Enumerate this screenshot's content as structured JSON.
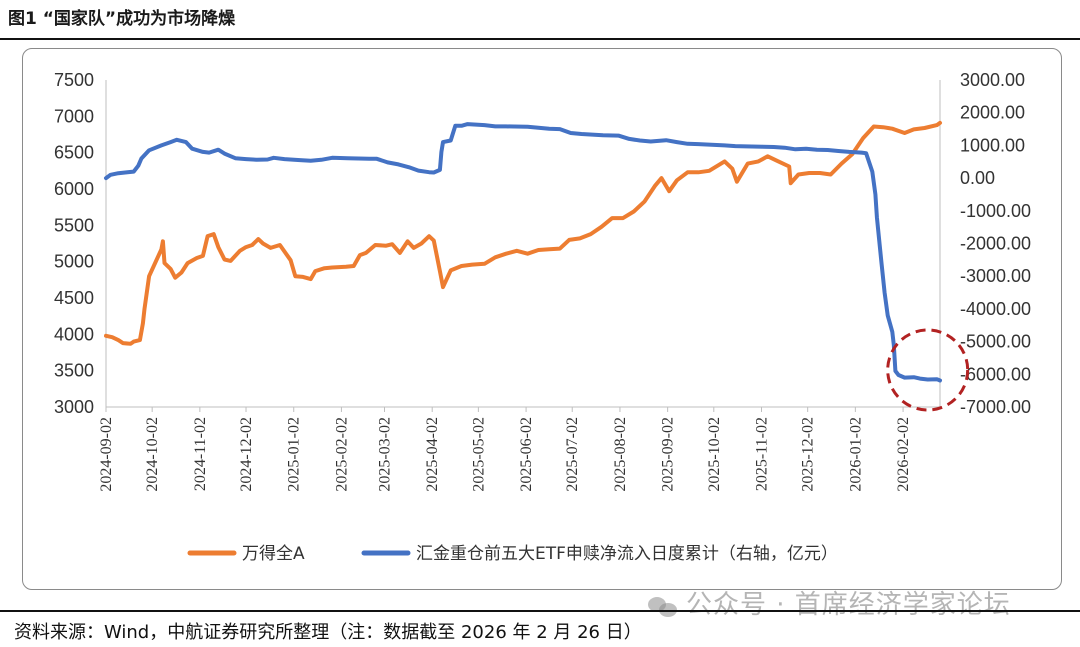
{
  "figure": {
    "title": "图1  “国家队”成功为市场降燥",
    "source": "资料来源：Wind，中航证券研究所整理（注：数据截至 2026 年 2 月 26 日）",
    "watermark": "公众号 · 首席经济学家论坛",
    "watermark_icon": "wechat-icon"
  },
  "chart_data": {
    "type": "line",
    "title": "",
    "x_tick_labels": [
      "2024-09-02",
      "2024-10-02",
      "2024-11-02",
      "2024-12-02",
      "2025-01-02",
      "2025-02-02",
      "2025-03-02",
      "2025-04-02",
      "2025-05-02",
      "2025-06-02",
      "2025-07-02",
      "2025-08-02",
      "2025-09-02",
      "2025-10-02",
      "2025-11-02",
      "2025-12-02",
      "2026-01-02",
      "2026-02-02"
    ],
    "x_range": [
      "2024-09-02",
      "2026-02-26"
    ],
    "y_left": {
      "min": 3000,
      "max": 7500,
      "ticks": [
        3000,
        3500,
        4000,
        4500,
        5000,
        5500,
        6000,
        6500,
        7000,
        7500
      ]
    },
    "y_right": {
      "min": -7000,
      "max": 3000,
      "ticks": [
        "3000.00",
        "2000.00",
        "1000.00",
        "0.00",
        "-1000.00",
        "-2000.00",
        "-3000.00",
        "-4000.00",
        "-5000.00",
        "-6000.00",
        "-7000.00"
      ],
      "tick_values": [
        3000,
        2000,
        1000,
        0,
        -1000,
        -2000,
        -3000,
        -4000,
        -5000,
        -6000,
        -7000
      ]
    },
    "grid": false,
    "legend_position": "bottom",
    "annotation": {
      "type": "dashed-circle",
      "color": "#b22222",
      "around_date": "2026-02-18"
    },
    "series": [
      {
        "name": "万得全A",
        "axis": "left",
        "color": "#ED7D31",
        "points": [
          [
            "2024-09-02",
            3980
          ],
          [
            "2024-09-06",
            3960
          ],
          [
            "2024-09-10",
            3920
          ],
          [
            "2024-09-13",
            3880
          ],
          [
            "2024-09-18",
            3870
          ],
          [
            "2024-09-20",
            3900
          ],
          [
            "2024-09-24",
            3920
          ],
          [
            "2024-09-26",
            4150
          ],
          [
            "2024-09-27",
            4350
          ],
          [
            "2024-09-30",
            4800
          ],
          [
            "2024-10-08",
            5170
          ],
          [
            "2024-10-09",
            5280
          ],
          [
            "2024-10-10",
            4980
          ],
          [
            "2024-10-14",
            4900
          ],
          [
            "2024-10-17",
            4780
          ],
          [
            "2024-10-21",
            4850
          ],
          [
            "2024-10-25",
            4980
          ],
          [
            "2024-10-31",
            5050
          ],
          [
            "2024-11-04",
            5080
          ],
          [
            "2024-11-07",
            5350
          ],
          [
            "2024-11-11",
            5380
          ],
          [
            "2024-11-14",
            5200
          ],
          [
            "2024-11-18",
            5030
          ],
          [
            "2024-11-22",
            5010
          ],
          [
            "2024-11-28",
            5150
          ],
          [
            "2024-12-02",
            5200
          ],
          [
            "2024-12-06",
            5230
          ],
          [
            "2024-12-10",
            5310
          ],
          [
            "2024-12-13",
            5250
          ],
          [
            "2024-12-18",
            5190
          ],
          [
            "2024-12-24",
            5230
          ],
          [
            "2024-12-31",
            5020
          ],
          [
            "2025-01-03",
            4800
          ],
          [
            "2025-01-08",
            4790
          ],
          [
            "2025-01-13",
            4760
          ],
          [
            "2025-01-16",
            4870
          ],
          [
            "2025-01-22",
            4910
          ],
          [
            "2025-01-27",
            4920
          ],
          [
            "2025-02-05",
            4930
          ],
          [
            "2025-02-10",
            4940
          ],
          [
            "2025-02-14",
            5090
          ],
          [
            "2025-02-18",
            5120
          ],
          [
            "2025-02-24",
            5230
          ],
          [
            "2025-03-03",
            5220
          ],
          [
            "2025-03-07",
            5240
          ],
          [
            "2025-03-12",
            5120
          ],
          [
            "2025-03-17",
            5280
          ],
          [
            "2025-03-21",
            5190
          ],
          [
            "2025-03-26",
            5250
          ],
          [
            "2025-03-31",
            5350
          ],
          [
            "2025-04-03",
            5290
          ],
          [
            "2025-04-07",
            4870
          ],
          [
            "2025-04-09",
            4650
          ],
          [
            "2025-04-14",
            4880
          ],
          [
            "2025-04-21",
            4940
          ],
          [
            "2025-04-28",
            4960
          ],
          [
            "2025-05-06",
            4970
          ],
          [
            "2025-05-13",
            5060
          ],
          [
            "2025-05-20",
            5110
          ],
          [
            "2025-05-27",
            5150
          ],
          [
            "2025-06-03",
            5110
          ],
          [
            "2025-06-10",
            5160
          ],
          [
            "2025-06-17",
            5170
          ],
          [
            "2025-06-24",
            5180
          ],
          [
            "2025-06-30",
            5300
          ],
          [
            "2025-07-07",
            5320
          ],
          [
            "2025-07-14",
            5380
          ],
          [
            "2025-07-21",
            5480
          ],
          [
            "2025-07-28",
            5600
          ],
          [
            "2025-08-04",
            5600
          ],
          [
            "2025-08-11",
            5690
          ],
          [
            "2025-08-18",
            5830
          ],
          [
            "2025-08-25",
            6050
          ],
          [
            "2025-08-29",
            6150
          ],
          [
            "2025-09-03",
            5970
          ],
          [
            "2025-09-08",
            6120
          ],
          [
            "2025-09-15",
            6230
          ],
          [
            "2025-09-22",
            6230
          ],
          [
            "2025-09-29",
            6250
          ],
          [
            "2025-10-09",
            6380
          ],
          [
            "2025-10-14",
            6280
          ],
          [
            "2025-10-17",
            6100
          ],
          [
            "2025-10-24",
            6350
          ],
          [
            "2025-10-31",
            6380
          ],
          [
            "2025-11-06",
            6450
          ],
          [
            "2025-11-13",
            6380
          ],
          [
            "2025-11-20",
            6310
          ],
          [
            "2025-11-21",
            6080
          ],
          [
            "2025-11-26",
            6200
          ],
          [
            "2025-12-03",
            6220
          ],
          [
            "2025-12-10",
            6220
          ],
          [
            "2025-12-17",
            6200
          ],
          [
            "2025-12-24",
            6350
          ],
          [
            "2025-12-31",
            6480
          ],
          [
            "2026-01-07",
            6700
          ],
          [
            "2026-01-14",
            6860
          ],
          [
            "2026-01-20",
            6850
          ],
          [
            "2026-01-26",
            6830
          ],
          [
            "2026-02-03",
            6770
          ],
          [
            "2026-02-09",
            6820
          ],
          [
            "2026-02-16",
            6840
          ],
          [
            "2026-02-24",
            6880
          ],
          [
            "2026-02-26",
            6910
          ]
        ]
      },
      {
        "name": "汇金重仓前五大ETF申赎净流入日度累计（右轴，亿元）",
        "axis": "right",
        "color": "#4472C4",
        "points": [
          [
            "2024-09-02",
            0
          ],
          [
            "2024-09-05",
            100
          ],
          [
            "2024-09-10",
            150
          ],
          [
            "2024-09-16",
            180
          ],
          [
            "2024-09-20",
            200
          ],
          [
            "2024-09-23",
            380
          ],
          [
            "2024-09-25",
            600
          ],
          [
            "2024-09-30",
            850
          ],
          [
            "2024-10-08",
            1000
          ],
          [
            "2024-10-14",
            1100
          ],
          [
            "2024-10-18",
            1170
          ],
          [
            "2024-10-24",
            1100
          ],
          [
            "2024-10-28",
            900
          ],
          [
            "2024-11-04",
            800
          ],
          [
            "2024-11-08",
            780
          ],
          [
            "2024-11-14",
            870
          ],
          [
            "2024-11-18",
            750
          ],
          [
            "2024-11-25",
            610
          ],
          [
            "2024-12-02",
            580
          ],
          [
            "2024-12-09",
            560
          ],
          [
            "2024-12-16",
            570
          ],
          [
            "2024-12-20",
            620
          ],
          [
            "2024-12-27",
            580
          ],
          [
            "2025-01-06",
            550
          ],
          [
            "2025-01-13",
            530
          ],
          [
            "2025-01-20",
            560
          ],
          [
            "2025-01-27",
            620
          ],
          [
            "2025-02-06",
            610
          ],
          [
            "2025-02-13",
            600
          ],
          [
            "2025-02-20",
            590
          ],
          [
            "2025-02-25",
            590
          ],
          [
            "2025-03-04",
            480
          ],
          [
            "2025-03-11",
            420
          ],
          [
            "2025-03-18",
            330
          ],
          [
            "2025-03-24",
            230
          ],
          [
            "2025-03-31",
            180
          ],
          [
            "2025-04-03",
            170
          ],
          [
            "2025-04-07",
            250
          ],
          [
            "2025-04-08",
            800
          ],
          [
            "2025-04-09",
            1100
          ],
          [
            "2025-04-14",
            1150
          ],
          [
            "2025-04-17",
            1600
          ],
          [
            "2025-04-21",
            1600
          ],
          [
            "2025-04-25",
            1650
          ],
          [
            "2025-05-06",
            1620
          ],
          [
            "2025-05-13",
            1580
          ],
          [
            "2025-05-20",
            1580
          ],
          [
            "2025-06-03",
            1570
          ],
          [
            "2025-06-10",
            1540
          ],
          [
            "2025-06-17",
            1510
          ],
          [
            "2025-06-24",
            1500
          ],
          [
            "2025-07-01",
            1380
          ],
          [
            "2025-07-08",
            1350
          ],
          [
            "2025-07-15",
            1330
          ],
          [
            "2025-07-22",
            1310
          ],
          [
            "2025-08-01",
            1300
          ],
          [
            "2025-08-08",
            1200
          ],
          [
            "2025-08-15",
            1150
          ],
          [
            "2025-08-22",
            1120
          ],
          [
            "2025-09-01",
            1160
          ],
          [
            "2025-09-08",
            1100
          ],
          [
            "2025-09-15",
            1050
          ],
          [
            "2025-09-22",
            1040
          ],
          [
            "2025-10-09",
            1000
          ],
          [
            "2025-10-16",
            980
          ],
          [
            "2025-10-23",
            970
          ],
          [
            "2025-11-03",
            960
          ],
          [
            "2025-11-10",
            950
          ],
          [
            "2025-11-17",
            930
          ],
          [
            "2025-11-24",
            880
          ],
          [
            "2025-12-01",
            900
          ],
          [
            "2025-12-08",
            870
          ],
          [
            "2025-12-15",
            860
          ],
          [
            "2025-12-22",
            830
          ],
          [
            "2025-12-29",
            800
          ],
          [
            "2026-01-06",
            780
          ],
          [
            "2026-01-09",
            760
          ],
          [
            "2026-01-13",
            200
          ],
          [
            "2026-01-15",
            -500
          ],
          [
            "2026-01-16",
            -1200
          ],
          [
            "2026-01-19",
            -2600
          ],
          [
            "2026-01-21",
            -3500
          ],
          [
            "2026-01-23",
            -4200
          ],
          [
            "2026-01-26",
            -4700
          ],
          [
            "2026-01-27",
            -5100
          ],
          [
            "2026-01-28",
            -5900
          ],
          [
            "2026-01-30",
            -6020
          ],
          [
            "2026-02-03",
            -6100
          ],
          [
            "2026-02-09",
            -6090
          ],
          [
            "2026-02-13",
            -6130
          ],
          [
            "2026-02-18",
            -6160
          ],
          [
            "2026-02-24",
            -6150
          ],
          [
            "2026-02-26",
            -6190
          ]
        ]
      }
    ]
  }
}
